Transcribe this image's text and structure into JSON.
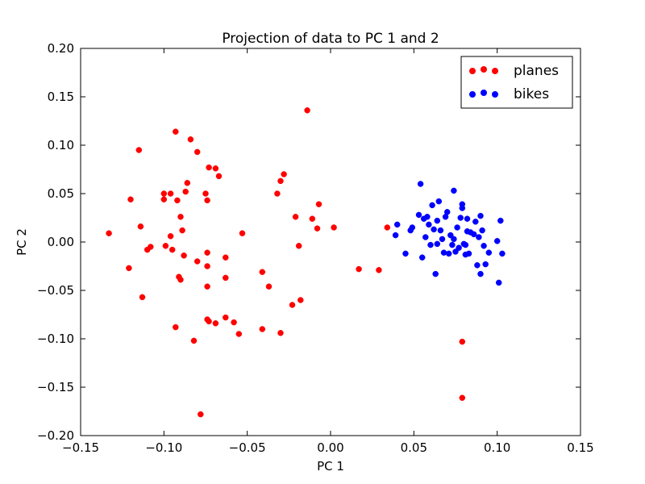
{
  "chart_data": {
    "type": "scatter",
    "title": "Projection of data to PC 1 and 2",
    "xlabel": "PC 1",
    "ylabel": "PC 2",
    "xlim": [
      -0.15,
      0.15
    ],
    "ylim": [
      -0.2,
      0.2
    ],
    "xticks": [
      -0.15,
      -0.1,
      -0.05,
      0.0,
      0.05,
      0.1,
      0.15
    ],
    "xtick_labels": [
      "−0.15",
      "−0.10",
      "−0.05",
      "0.00",
      "0.05",
      "0.10",
      "0.15"
    ],
    "yticks": [
      0.2,
      0.15,
      0.1,
      0.05,
      0.0,
      -0.05,
      -0.1,
      -0.15,
      -0.2
    ],
    "ytick_labels": [
      "0.20",
      "0.15",
      "0.10",
      "0.05",
      "0.00",
      "−0.05",
      "−0.10",
      "−0.15",
      "−0.20"
    ],
    "grid": false,
    "legend_position": "top-right",
    "series": [
      {
        "name": "planes",
        "color": "#ff0000",
        "points": [
          [
            -0.133,
            0.009
          ],
          [
            -0.121,
            -0.027
          ],
          [
            -0.12,
            0.044
          ],
          [
            -0.115,
            0.095
          ],
          [
            -0.114,
            0.016
          ],
          [
            -0.113,
            -0.057
          ],
          [
            -0.11,
            -0.008
          ],
          [
            -0.108,
            -0.005
          ],
          [
            -0.1,
            0.05
          ],
          [
            -0.1,
            0.044
          ],
          [
            -0.099,
            -0.004
          ],
          [
            -0.096,
            0.006
          ],
          [
            -0.096,
            0.05
          ],
          [
            -0.095,
            -0.008
          ],
          [
            -0.093,
            0.114
          ],
          [
            -0.093,
            -0.088
          ],
          [
            -0.092,
            0.043
          ],
          [
            -0.091,
            -0.036
          ],
          [
            -0.09,
            -0.039
          ],
          [
            -0.09,
            0.026
          ],
          [
            -0.089,
            0.012
          ],
          [
            -0.088,
            -0.014
          ],
          [
            -0.087,
            0.052
          ],
          [
            -0.086,
            0.061
          ],
          [
            -0.084,
            0.106
          ],
          [
            -0.082,
            -0.102
          ],
          [
            -0.08,
            0.093
          ],
          [
            -0.08,
            -0.02
          ],
          [
            -0.078,
            -0.178
          ],
          [
            -0.075,
            0.05
          ],
          [
            -0.074,
            -0.011
          ],
          [
            -0.074,
            -0.025
          ],
          [
            -0.074,
            -0.046
          ],
          [
            -0.074,
            -0.08
          ],
          [
            -0.074,
            0.043
          ],
          [
            -0.073,
            0.077
          ],
          [
            -0.073,
            -0.082
          ],
          [
            -0.069,
            0.076
          ],
          [
            -0.069,
            -0.084
          ],
          [
            -0.067,
            0.068
          ],
          [
            -0.063,
            -0.016
          ],
          [
            -0.063,
            -0.037
          ],
          [
            -0.063,
            -0.078
          ],
          [
            -0.058,
            -0.083
          ],
          [
            -0.055,
            -0.095
          ],
          [
            -0.053,
            0.009
          ],
          [
            -0.041,
            -0.031
          ],
          [
            -0.041,
            -0.09
          ],
          [
            -0.037,
            -0.046
          ],
          [
            -0.032,
            0.05
          ],
          [
            -0.03,
            0.063
          ],
          [
            -0.03,
            -0.094
          ],
          [
            -0.028,
            0.07
          ],
          [
            -0.023,
            -0.065
          ],
          [
            -0.021,
            0.026
          ],
          [
            -0.019,
            -0.004
          ],
          [
            -0.018,
            -0.06
          ],
          [
            -0.014,
            0.136
          ],
          [
            -0.011,
            0.024
          ],
          [
            -0.008,
            0.014
          ],
          [
            -0.007,
            0.039
          ],
          [
            0.002,
            0.015
          ],
          [
            0.017,
            -0.028
          ],
          [
            0.029,
            -0.029
          ],
          [
            0.034,
            0.015
          ],
          [
            0.079,
            -0.103
          ],
          [
            0.079,
            -0.161
          ]
        ]
      },
      {
        "name": "bikes",
        "color": "#0000ff",
        "points": [
          [
            0.039,
            0.007
          ],
          [
            0.04,
            0.018
          ],
          [
            0.045,
            -0.012
          ],
          [
            0.048,
            0.012
          ],
          [
            0.049,
            0.015
          ],
          [
            0.053,
            0.028
          ],
          [
            0.054,
            0.06
          ],
          [
            0.055,
            -0.016
          ],
          [
            0.056,
            0.024
          ],
          [
            0.057,
            0.005
          ],
          [
            0.058,
            0.026
          ],
          [
            0.059,
            0.018
          ],
          [
            0.06,
            -0.003
          ],
          [
            0.061,
            0.038
          ],
          [
            0.062,
            0.013
          ],
          [
            0.063,
            -0.033
          ],
          [
            0.064,
            0.022
          ],
          [
            0.064,
            -0.002
          ],
          [
            0.065,
            0.042
          ],
          [
            0.066,
            0.012
          ],
          [
            0.067,
            0.003
          ],
          [
            0.068,
            -0.011
          ],
          [
            0.069,
            0.026
          ],
          [
            0.07,
            0.031
          ],
          [
            0.071,
            -0.012
          ],
          [
            0.072,
            0.007
          ],
          [
            0.073,
            -0.003
          ],
          [
            0.074,
            0.053
          ],
          [
            0.074,
            0.003
          ],
          [
            0.075,
            -0.01
          ],
          [
            0.076,
            0.015
          ],
          [
            0.077,
            -0.006
          ],
          [
            0.078,
            0.025
          ],
          [
            0.079,
            0.039
          ],
          [
            0.079,
            0.035
          ],
          [
            0.08,
            -0.002
          ],
          [
            0.081,
            -0.003
          ],
          [
            0.081,
            -0.013
          ],
          [
            0.082,
            0.011
          ],
          [
            0.082,
            0.024
          ],
          [
            0.083,
            -0.012
          ],
          [
            0.084,
            0.01
          ],
          [
            0.086,
            0.008
          ],
          [
            0.087,
            0.021
          ],
          [
            0.088,
            -0.024
          ],
          [
            0.089,
            0.005
          ],
          [
            0.09,
            0.027
          ],
          [
            0.09,
            -0.033
          ],
          [
            0.091,
            0.012
          ],
          [
            0.092,
            -0.004
          ],
          [
            0.093,
            -0.023
          ],
          [
            0.095,
            -0.011
          ],
          [
            0.1,
            0.001
          ],
          [
            0.101,
            -0.042
          ],
          [
            0.102,
            0.022
          ],
          [
            0.103,
            -0.012
          ]
        ]
      }
    ]
  }
}
